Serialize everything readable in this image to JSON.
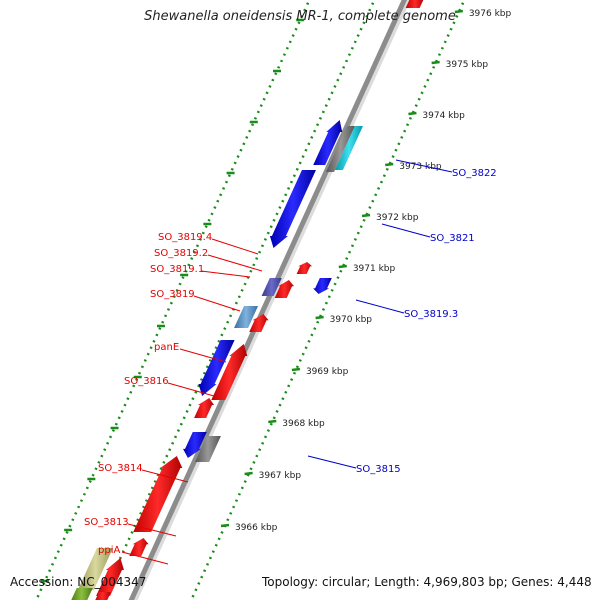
{
  "title": "Shewanella oneidensis MR-1, complete genome",
  "footer": {
    "accession": "Accession: NC_004347",
    "summary": "Topology: circular; Length: 4,969,803 bp; Genes: 4,448"
  },
  "colors": {
    "forward": "#ff1a1a",
    "reverse": "#1a1aff",
    "backbone": "#8c8c8c",
    "ticks": "#1a8c1a",
    "label_forward": "#e60000",
    "label_reverse": "#0000cc"
  },
  "scale_ticks": [
    {
      "label": "3976 kbp"
    },
    {
      "label": "3975 kbp"
    },
    {
      "label": "3974 kbp"
    },
    {
      "label": "3973 kbp"
    },
    {
      "label": "3972 kbp"
    },
    {
      "label": "3971 kbp"
    },
    {
      "label": "3970 kbp"
    },
    {
      "label": "3969 kbp"
    },
    {
      "label": "3968 kbp"
    },
    {
      "label": "3967 kbp"
    },
    {
      "label": "3966 kbp"
    }
  ],
  "forward_labels": [
    "SO_3819.4",
    "SO_3819.2",
    "SO_3819.1",
    "SO_3819",
    "panE",
    "SO_3816",
    "SO_3814",
    "SO_3813",
    "ppiA"
  ],
  "reverse_labels": [
    "SO_3822",
    "SO_3821",
    "SO_3819.3",
    "SO_3815"
  ]
}
